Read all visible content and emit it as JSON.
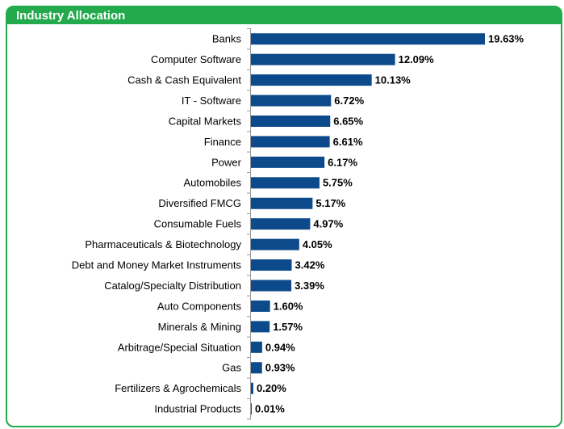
{
  "chart_data": {
    "type": "bar",
    "orientation": "horizontal",
    "title": "Industry Allocation",
    "categories": [
      "Banks",
      "Computer Software",
      "Cash & Cash Equivalent",
      "IT - Software",
      "Capital Markets",
      "Finance",
      "Power",
      "Automobiles",
      "Diversified FMCG",
      "Consumable Fuels",
      "Pharmaceuticals & Biotechnology",
      "Debt and Money Market Instruments",
      "Catalog/Specialty Distribution",
      "Auto Components",
      "Minerals & Mining",
      "Arbitrage/Special Situation",
      "Gas",
      "Fertilizers & Agrochemicals",
      "Industrial Products"
    ],
    "values": [
      19.63,
      12.09,
      10.13,
      6.72,
      6.65,
      6.61,
      6.17,
      5.75,
      5.17,
      4.97,
      4.05,
      3.42,
      3.39,
      1.6,
      1.57,
      0.94,
      0.93,
      0.2,
      0.01
    ],
    "value_labels": [
      "19.63%",
      "12.09%",
      "10.13%",
      "6.72%",
      "6.65%",
      "6.61%",
      "6.17%",
      "5.75%",
      "5.17%",
      "4.97%",
      "4.05%",
      "3.42%",
      "3.39%",
      "1.60%",
      "1.57%",
      "0.94%",
      "0.93%",
      "0.20%",
      "0.01%"
    ],
    "color": "#0d4a8b"
  }
}
